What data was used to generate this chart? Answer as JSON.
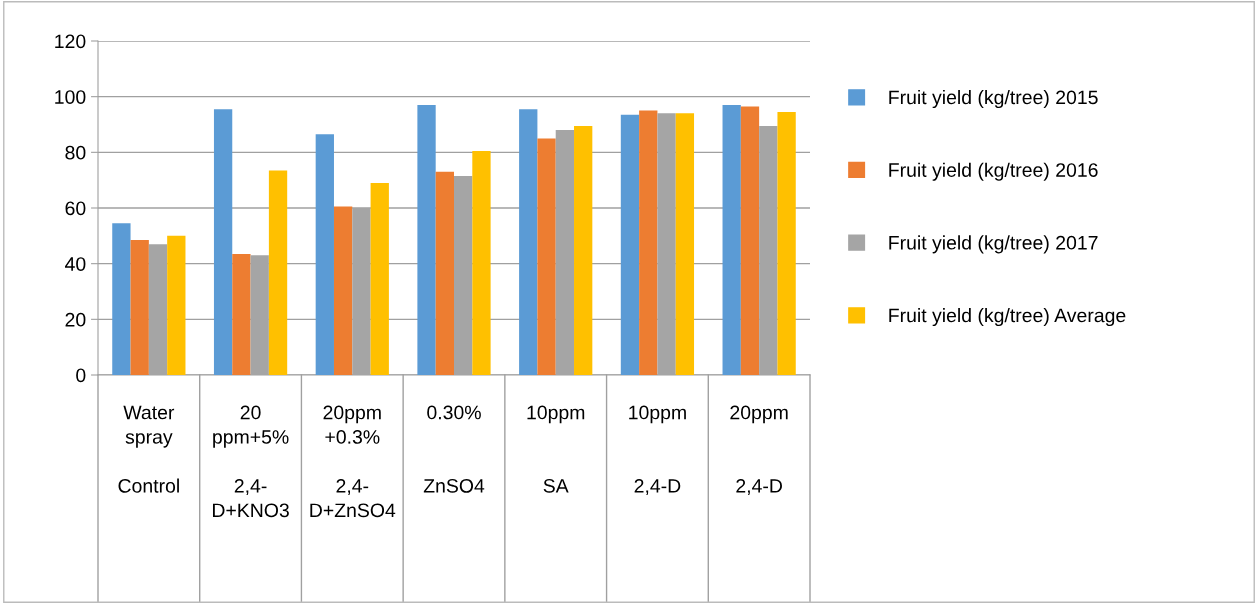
{
  "chart_data": {
    "type": "bar",
    "categories": [
      "Water\nspray\n\nControl",
      "20\nppm+5%\n\n2,4-\nD+KNO3",
      "20ppm\n+0.3%\n\n2,4-\nD+ZnSO4",
      "0.30%\n\n\nZnSO4",
      "10ppm\n\n\nSA",
      "10ppm\n\n\n2,4-D",
      "20ppm\n\n\n2,4-D"
    ],
    "series": [
      {
        "name": "Fruit yield (kg/tree) 2015",
        "color": "#5b9bd5",
        "values": [
          54.5,
          95.5,
          86.5,
          97,
          95.5,
          93.5,
          97
        ]
      },
      {
        "name": "Fruit yield (kg/tree) 2016",
        "color": "#ed7d31",
        "values": [
          48.5,
          43.5,
          60.5,
          73,
          85,
          95,
          96.5
        ]
      },
      {
        "name": "Fruit yield (kg/tree) 2017",
        "color": "#a5a5a5",
        "values": [
          47,
          43,
          60,
          71.5,
          88,
          94,
          89.5
        ]
      },
      {
        "name": "Fruit yield (kg/tree) Average",
        "color": "#ffc000",
        "values": [
          50,
          73.5,
          69,
          80.5,
          89.5,
          94,
          94.5
        ]
      }
    ],
    "ylim": [
      0,
      120
    ],
    "yticks": [
      0,
      20,
      40,
      60,
      80,
      100,
      120
    ],
    "grid": "y",
    "legend": "right"
  }
}
